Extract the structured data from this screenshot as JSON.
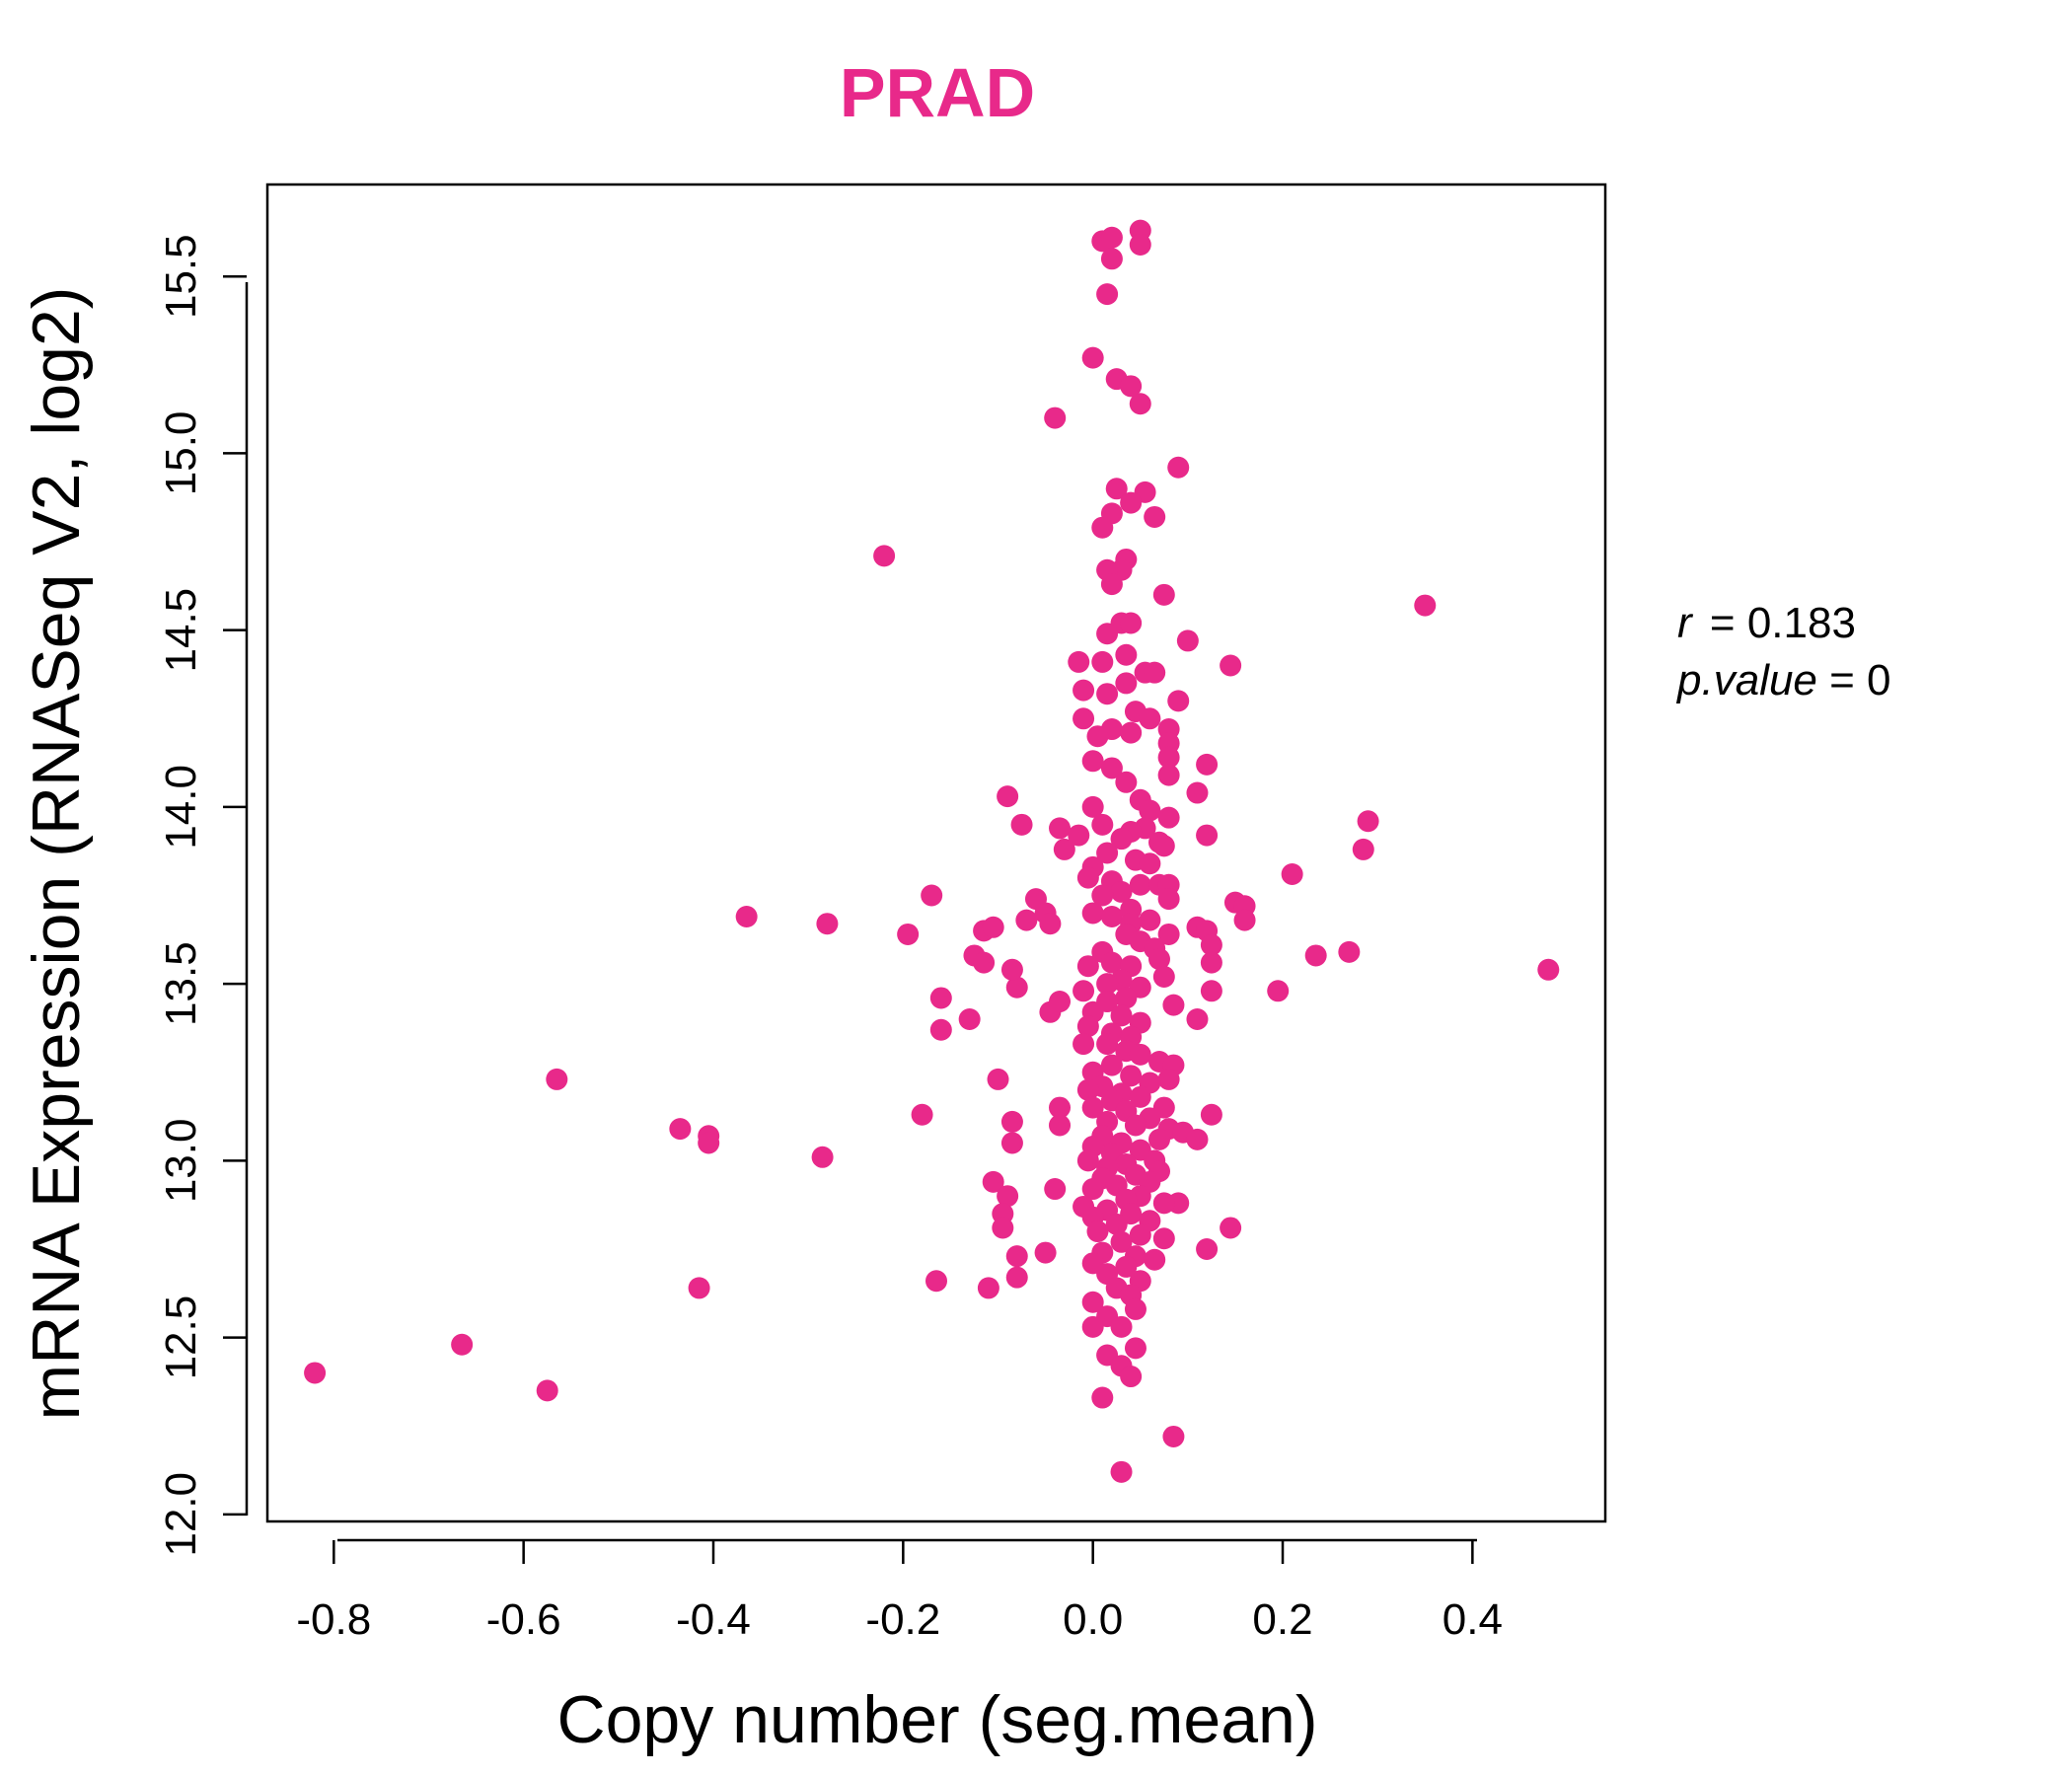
{
  "chart_data": {
    "type": "scatter",
    "title": "PRAD",
    "xlabel": "Copy number (seg.mean)",
    "ylabel": "mRNA Expression (RNASeq V2, log2)",
    "xlim": [
      -0.87,
      0.54
    ],
    "ylim": [
      11.98,
      15.76
    ],
    "x_ticks": [
      -0.8,
      -0.6,
      -0.4,
      -0.2,
      0.0,
      0.2,
      0.4
    ],
    "x_tick_labels": [
      "-0.8",
      "-0.6",
      "-0.4",
      "-0.2",
      "0.0",
      "0.2",
      "0.4"
    ],
    "y_ticks": [
      12.0,
      12.5,
      13.0,
      13.5,
      14.0,
      14.5,
      15.0,
      15.5
    ],
    "y_tick_labels": [
      "12.0",
      "12.5",
      "13.0",
      "13.5",
      "14.0",
      "14.5",
      "15.0",
      "15.5"
    ],
    "color": "#e8298a",
    "stats": {
      "r_label": "r",
      "r_value": "0.183",
      "p_label": "p.value",
      "p_value": "0"
    },
    "points": [
      [
        -0.82,
        12.4
      ],
      [
        -0.665,
        12.48
      ],
      [
        -0.575,
        12.35
      ],
      [
        -0.565,
        13.23
      ],
      [
        -0.435,
        13.09
      ],
      [
        -0.405,
        13.07
      ],
      [
        -0.405,
        13.05
      ],
      [
        -0.415,
        12.64
      ],
      [
        -0.365,
        13.69
      ],
      [
        -0.28,
        13.67
      ],
      [
        -0.285,
        13.01
      ],
      [
        -0.22,
        14.71
      ],
      [
        -0.195,
        13.64
      ],
      [
        -0.17,
        13.75
      ],
      [
        -0.18,
        13.13
      ],
      [
        -0.165,
        12.66
      ],
      [
        -0.16,
        13.46
      ],
      [
        -0.16,
        13.37
      ],
      [
        -0.13,
        13.4
      ],
      [
        -0.125,
        13.58
      ],
      [
        -0.115,
        13.65
      ],
      [
        -0.115,
        13.56
      ],
      [
        -0.105,
        13.66
      ],
      [
        -0.1,
        13.23
      ],
      [
        -0.105,
        12.94
      ],
      [
        -0.09,
        14.03
      ],
      [
        -0.075,
        13.95
      ],
      [
        -0.09,
        12.9
      ],
      [
        -0.095,
        12.85
      ],
      [
        -0.095,
        12.81
      ],
      [
        -0.085,
        13.11
      ],
      [
        -0.085,
        13.05
      ],
      [
        -0.08,
        12.73
      ],
      [
        -0.08,
        12.67
      ],
      [
        -0.11,
        12.64
      ],
      [
        -0.08,
        13.49
      ],
      [
        -0.07,
        13.68
      ],
      [
        -0.06,
        13.74
      ],
      [
        -0.05,
        13.7
      ],
      [
        -0.045,
        13.67
      ],
      [
        -0.045,
        13.42
      ],
      [
        -0.035,
        13.45
      ],
      [
        -0.035,
        13.15
      ],
      [
        -0.035,
        13.1
      ],
      [
        -0.04,
        12.92
      ],
      [
        -0.05,
        12.74
      ],
      [
        -0.085,
        13.54
      ],
      [
        -0.04,
        15.1
      ],
      [
        -0.03,
        13.88
      ],
      [
        -0.035,
        13.94
      ],
      [
        0.0,
        15.27
      ],
      [
        0.01,
        15.6
      ],
      [
        0.02,
        15.61
      ],
      [
        0.02,
        15.55
      ],
      [
        0.015,
        15.45
      ],
      [
        0.05,
        15.63
      ],
      [
        0.05,
        15.59
      ],
      [
        0.025,
        15.21
      ],
      [
        0.04,
        15.19
      ],
      [
        0.05,
        15.14
      ],
      [
        0.09,
        14.96
      ],
      [
        0.025,
        14.9
      ],
      [
        0.055,
        14.89
      ],
      [
        0.04,
        14.86
      ],
      [
        0.02,
        14.83
      ],
      [
        0.065,
        14.82
      ],
      [
        0.01,
        14.79
      ],
      [
        0.035,
        14.7
      ],
      [
        0.03,
        14.67
      ],
      [
        0.015,
        14.67
      ],
      [
        0.02,
        14.63
      ],
      [
        0.075,
        14.6
      ],
      [
        0.35,
        14.57
      ],
      [
        0.03,
        14.52
      ],
      [
        0.04,
        14.52
      ],
      [
        0.015,
        14.49
      ],
      [
        0.1,
        14.47
      ],
      [
        0.035,
        14.43
      ],
      [
        0.01,
        14.41
      ],
      [
        -0.015,
        14.41
      ],
      [
        0.145,
        14.4
      ],
      [
        0.055,
        14.38
      ],
      [
        0.065,
        14.38
      ],
      [
        0.035,
        14.35
      ],
      [
        0.09,
        14.3
      ],
      [
        0.015,
        14.32
      ],
      [
        -0.01,
        14.33
      ],
      [
        0.045,
        14.27
      ],
      [
        0.06,
        14.25
      ],
      [
        0.02,
        14.22
      ],
      [
        0.08,
        14.22
      ],
      [
        0.04,
        14.21
      ],
      [
        -0.01,
        14.25
      ],
      [
        0.005,
        14.2
      ],
      [
        0.08,
        14.18
      ],
      [
        0.08,
        14.14
      ],
      [
        0.12,
        14.12
      ],
      [
        0.0,
        14.13
      ],
      [
        0.02,
        14.11
      ],
      [
        0.08,
        14.09
      ],
      [
        0.035,
        14.07
      ],
      [
        0.11,
        14.04
      ],
      [
        0.05,
        14.02
      ],
      [
        0.0,
        14.0
      ],
      [
        0.06,
        13.99
      ],
      [
        0.08,
        13.97
      ],
      [
        0.29,
        13.96
      ],
      [
        0.01,
        13.95
      ],
      [
        0.055,
        13.94
      ],
      [
        0.04,
        13.93
      ],
      [
        0.12,
        13.92
      ],
      [
        -0.015,
        13.92
      ],
      [
        0.03,
        13.91
      ],
      [
        0.07,
        13.9
      ],
      [
        0.075,
        13.89
      ],
      [
        0.285,
        13.88
      ],
      [
        0.015,
        13.87
      ],
      [
        0.045,
        13.85
      ],
      [
        0.06,
        13.84
      ],
      [
        0.0,
        13.83
      ],
      [
        -0.005,
        13.8
      ],
      [
        0.02,
        13.79
      ],
      [
        0.05,
        13.78
      ],
      [
        0.07,
        13.78
      ],
      [
        0.08,
        13.78
      ],
      [
        0.21,
        13.81
      ],
      [
        0.03,
        13.76
      ],
      [
        0.01,
        13.75
      ],
      [
        0.08,
        13.74
      ],
      [
        0.15,
        13.73
      ],
      [
        0.16,
        13.72
      ],
      [
        0.04,
        13.71
      ],
      [
        0.0,
        13.7
      ],
      [
        0.02,
        13.69
      ],
      [
        0.16,
        13.68
      ],
      [
        0.06,
        13.68
      ],
      [
        0.04,
        13.67
      ],
      [
        0.11,
        13.66
      ],
      [
        0.12,
        13.65
      ],
      [
        0.035,
        13.64
      ],
      [
        0.08,
        13.64
      ],
      [
        0.05,
        13.62
      ],
      [
        0.125,
        13.61
      ],
      [
        0.065,
        13.6
      ],
      [
        0.27,
        13.59
      ],
      [
        0.235,
        13.58
      ],
      [
        0.01,
        13.59
      ],
      [
        0.07,
        13.57
      ],
      [
        0.125,
        13.56
      ],
      [
        0.02,
        13.56
      ],
      [
        0.48,
        13.54
      ],
      [
        0.04,
        13.55
      ],
      [
        -0.005,
        13.55
      ],
      [
        0.075,
        13.52
      ],
      [
        0.03,
        13.51
      ],
      [
        0.015,
        13.5
      ],
      [
        0.05,
        13.49
      ],
      [
        0.195,
        13.48
      ],
      [
        0.125,
        13.48
      ],
      [
        -0.01,
        13.48
      ],
      [
        0.035,
        13.46
      ],
      [
        0.015,
        13.45
      ],
      [
        0.085,
        13.44
      ],
      [
        0.0,
        13.42
      ],
      [
        0.03,
        13.41
      ],
      [
        0.11,
        13.4
      ],
      [
        0.05,
        13.39
      ],
      [
        -0.005,
        13.38
      ],
      [
        0.02,
        13.36
      ],
      [
        0.04,
        13.35
      ],
      [
        0.015,
        13.33
      ],
      [
        -0.01,
        13.33
      ],
      [
        0.035,
        13.31
      ],
      [
        0.05,
        13.3
      ],
      [
        0.07,
        13.28
      ],
      [
        0.085,
        13.27
      ],
      [
        0.02,
        13.27
      ],
      [
        0.0,
        13.25
      ],
      [
        0.04,
        13.24
      ],
      [
        0.08,
        13.23
      ],
      [
        0.06,
        13.22
      ],
      [
        0.01,
        13.21
      ],
      [
        -0.005,
        13.2
      ],
      [
        0.03,
        13.19
      ],
      [
        0.05,
        13.18
      ],
      [
        0.02,
        13.17
      ],
      [
        0.075,
        13.15
      ],
      [
        0.0,
        13.15
      ],
      [
        0.035,
        13.14
      ],
      [
        0.125,
        13.13
      ],
      [
        0.06,
        13.12
      ],
      [
        0.015,
        13.11
      ],
      [
        0.045,
        13.1
      ],
      [
        0.08,
        13.09
      ],
      [
        0.095,
        13.08
      ],
      [
        0.01,
        13.07
      ],
      [
        0.11,
        13.06
      ],
      [
        0.07,
        13.06
      ],
      [
        0.03,
        13.05
      ],
      [
        0.0,
        13.04
      ],
      [
        0.05,
        13.03
      ],
      [
        0.02,
        13.02
      ],
      [
        0.065,
        13.0
      ],
      [
        -0.005,
        13.0
      ],
      [
        0.035,
        12.99
      ],
      [
        0.015,
        12.98
      ],
      [
        0.07,
        12.97
      ],
      [
        0.045,
        12.96
      ],
      [
        0.01,
        12.95
      ],
      [
        0.06,
        12.94
      ],
      [
        0.025,
        12.93
      ],
      [
        0.0,
        12.92
      ],
      [
        0.05,
        12.9
      ],
      [
        0.035,
        12.89
      ],
      [
        0.09,
        12.88
      ],
      [
        0.075,
        12.88
      ],
      [
        -0.01,
        12.87
      ],
      [
        0.015,
        12.86
      ],
      [
        0.04,
        12.85
      ],
      [
        0.0,
        12.84
      ],
      [
        0.06,
        12.83
      ],
      [
        0.025,
        12.82
      ],
      [
        0.145,
        12.81
      ],
      [
        0.005,
        12.8
      ],
      [
        0.05,
        12.79
      ],
      [
        0.075,
        12.78
      ],
      [
        0.03,
        12.77
      ],
      [
        0.12,
        12.75
      ],
      [
        0.01,
        12.74
      ],
      [
        0.045,
        12.73
      ],
      [
        0.065,
        12.72
      ],
      [
        0.0,
        12.71
      ],
      [
        0.035,
        12.7
      ],
      [
        0.015,
        12.68
      ],
      [
        0.05,
        12.66
      ],
      [
        0.025,
        12.64
      ],
      [
        0.04,
        12.62
      ],
      [
        0.0,
        12.6
      ],
      [
        0.045,
        12.58
      ],
      [
        0.015,
        12.56
      ],
      [
        0.0,
        12.53
      ],
      [
        0.03,
        12.53
      ],
      [
        0.045,
        12.47
      ],
      [
        0.015,
        12.45
      ],
      [
        0.03,
        12.42
      ],
      [
        0.04,
        12.39
      ],
      [
        0.01,
        12.33
      ],
      [
        0.085,
        12.22
      ],
      [
        0.03,
        12.12
      ]
    ]
  }
}
